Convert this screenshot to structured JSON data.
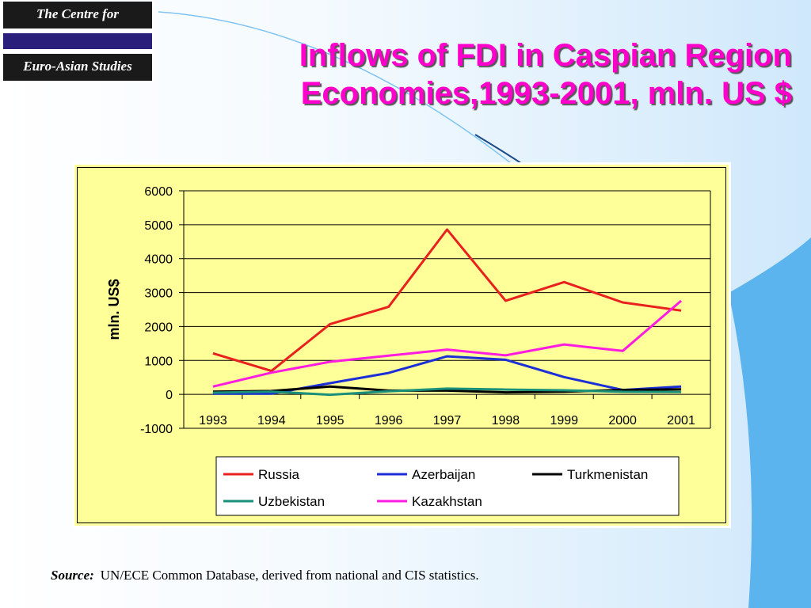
{
  "logo": {
    "line1": "The Centre for",
    "line2": "Euro-Asian Studies"
  },
  "title": {
    "line1": "Inflows of FDI in Caspian Region",
    "line2": "Economies,1993-2001, mln. US $"
  },
  "source": {
    "label": "Source:",
    "text": "UN/ECE Common Database, derived from national and CIS statistics."
  },
  "colors": {
    "title": "#ff00cc",
    "chart_background": "#ffff99",
    "background_gradient": "#cfe8fb"
  },
  "chart_data": {
    "type": "line",
    "title": "",
    "xlabel": "",
    "ylabel": "mln. US$",
    "x": [
      "1993",
      "1994",
      "1995",
      "1996",
      "1997",
      "1998",
      "1999",
      "2000",
      "2001"
    ],
    "ylim": [
      -1000,
      6000
    ],
    "yticks": [
      -1000,
      0,
      1000,
      2000,
      3000,
      4000,
      5000,
      6000
    ],
    "grid": true,
    "legend_position": "bottom",
    "series": [
      {
        "name": "Russia",
        "color": "#e8211e",
        "values": [
          1210,
          690,
          2070,
          2580,
          4860,
          2760,
          3310,
          2710,
          2470
        ]
      },
      {
        "name": "Azerbaijan",
        "color": "#1c2fd6",
        "values": [
          20,
          20,
          330,
          630,
          1120,
          1020,
          510,
          130,
          230
        ]
      },
      {
        "name": "Turkmenistan",
        "color": "#000000",
        "values": [
          80,
          100,
          230,
          110,
          110,
          60,
          80,
          130,
          150
        ]
      },
      {
        "name": "Uzbekistan",
        "color": "#1a8f7a",
        "values": [
          50,
          80,
          -10,
          90,
          170,
          140,
          120,
          75,
          70
        ]
      },
      {
        "name": "Kazakhstan",
        "color": "#ff1ce0",
        "values": [
          230,
          640,
          960,
          1140,
          1320,
          1150,
          1470,
          1280,
          2760
        ]
      }
    ]
  }
}
